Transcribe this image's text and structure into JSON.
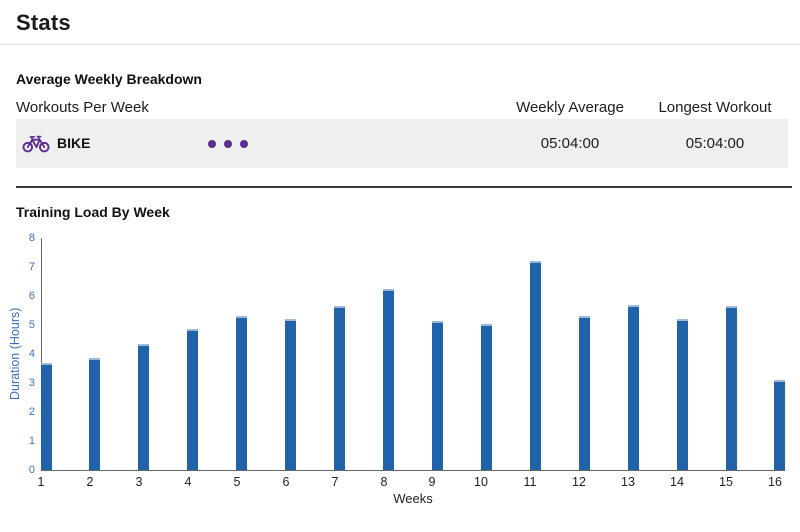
{
  "page": {
    "title": "Stats"
  },
  "breakdown": {
    "heading": "Average Weekly Breakdown",
    "columns": {
      "workouts": "Workouts Per Week",
      "weekly_average": "Weekly Average",
      "longest_workout": "Longest Workout"
    },
    "rows": [
      {
        "sport": "BIKE",
        "icon": "bike-icon",
        "workouts_per_week": 3,
        "weekly_average": "05:04:00",
        "longest_workout": "05:04:00"
      }
    ]
  },
  "chart_section": {
    "heading": "Training Load By Week"
  },
  "chart_data": {
    "type": "bar",
    "title": "Training Load By Week",
    "xlabel": "Weeks",
    "ylabel": "Duration (Hours)",
    "categories": [
      "1",
      "2",
      "3",
      "4",
      "5",
      "6",
      "7",
      "8",
      "9",
      "10",
      "11",
      "12",
      "13",
      "14",
      "15",
      "16"
    ],
    "values": [
      3.7,
      3.85,
      4.35,
      4.85,
      5.3,
      5.2,
      5.65,
      6.25,
      5.15,
      5.05,
      7.2,
      5.3,
      5.7,
      5.2,
      5.65,
      3.1
    ],
    "ylim": [
      0,
      8
    ],
    "ytick_interval": 1,
    "grid": false,
    "legend": "none",
    "bar_color": "#2163a8"
  },
  "colors": {
    "accent_purple": "#5b2d91",
    "bar_blue": "#2163a8",
    "axis_label_blue": "#3e6dbf",
    "row_background": "#efefef"
  }
}
